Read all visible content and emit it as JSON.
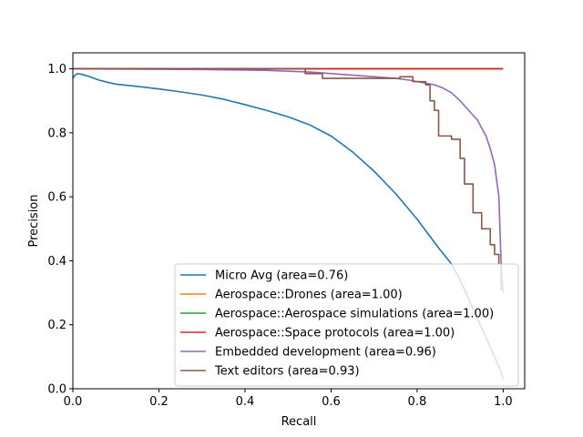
{
  "chart_data": {
    "type": "line",
    "xlabel": "Recall",
    "ylabel": "Precision",
    "xlim": [
      0.0,
      1.05
    ],
    "ylim": [
      0.0,
      1.05
    ],
    "grid": false,
    "legend_position": "lower-right",
    "x_ticks": [
      "0.0",
      "0.2",
      "0.4",
      "0.6",
      "0.8",
      "1.0"
    ],
    "y_ticks": [
      "0.0",
      "0.2",
      "0.4",
      "0.6",
      "0.8",
      "1.0"
    ],
    "series": [
      {
        "name": "Micro Avg (area=0.76)",
        "color": "#1f77b4",
        "x": [
          0.0,
          0.005,
          0.01,
          0.02,
          0.04,
          0.06,
          0.08,
          0.1,
          0.15,
          0.2,
          0.25,
          0.3,
          0.35,
          0.4,
          0.45,
          0.5,
          0.55,
          0.6,
          0.65,
          0.7,
          0.75,
          0.8,
          0.85,
          0.88,
          0.9,
          0.92,
          0.94,
          0.96,
          0.98,
          0.99,
          0.995,
          1.0
        ],
        "y": [
          0.97,
          0.98,
          0.985,
          0.983,
          0.975,
          0.965,
          0.958,
          0.952,
          0.945,
          0.937,
          0.928,
          0.918,
          0.905,
          0.888,
          0.87,
          0.85,
          0.825,
          0.79,
          0.74,
          0.68,
          0.61,
          0.53,
          0.44,
          0.39,
          0.34,
          0.28,
          0.22,
          0.16,
          0.1,
          0.07,
          0.05,
          0.03
        ]
      },
      {
        "name": "Aerospace::Drones (area=1.00)",
        "color": "#ff7f0e",
        "x": [
          0.0,
          1.0
        ],
        "y": [
          1.0,
          1.0
        ]
      },
      {
        "name": "Aerospace::Aerospace simulations (area=1.00)",
        "color": "#2ca02c",
        "x": [
          0.0,
          1.0
        ],
        "y": [
          1.0,
          1.0
        ]
      },
      {
        "name": "Aerospace::Space protocols (area=1.00)",
        "color": "#d62728",
        "x": [
          0.0,
          1.0
        ],
        "y": [
          1.0,
          1.0
        ]
      },
      {
        "name": "Embedded development (area=0.96)",
        "color": "#9467bd",
        "x": [
          0.0,
          0.3,
          0.45,
          0.55,
          0.6,
          0.65,
          0.7,
          0.75,
          0.78,
          0.8,
          0.82,
          0.84,
          0.86,
          0.88,
          0.9,
          0.92,
          0.94,
          0.96,
          0.97,
          0.98,
          0.99,
          0.995,
          1.0
        ],
        "y": [
          1.0,
          0.998,
          0.995,
          0.99,
          0.985,
          0.98,
          0.975,
          0.97,
          0.965,
          0.96,
          0.955,
          0.95,
          0.94,
          0.925,
          0.9,
          0.87,
          0.84,
          0.79,
          0.75,
          0.7,
          0.6,
          0.4,
          0.3
        ]
      },
      {
        "name": "Text editors (area=0.93)",
        "color": "#8c564b",
        "x": [
          0.0,
          0.54,
          0.54,
          0.58,
          0.58,
          0.76,
          0.76,
          0.79,
          0.79,
          0.82,
          0.82,
          0.83,
          0.83,
          0.84,
          0.84,
          0.85,
          0.85,
          0.88,
          0.88,
          0.9,
          0.9,
          0.91,
          0.91,
          0.93,
          0.93,
          0.95,
          0.95,
          0.97,
          0.97,
          0.98,
          0.98,
          0.99,
          0.99,
          0.995,
          0.995,
          1.0
        ],
        "y": [
          1.0,
          1.0,
          0.985,
          0.985,
          0.97,
          0.97,
          0.975,
          0.975,
          0.96,
          0.96,
          0.95,
          0.95,
          0.9,
          0.9,
          0.87,
          0.87,
          0.79,
          0.79,
          0.78,
          0.78,
          0.72,
          0.72,
          0.64,
          0.64,
          0.55,
          0.55,
          0.5,
          0.5,
          0.45,
          0.45,
          0.42,
          0.42,
          0.39,
          0.39,
          0.31,
          0.31
        ]
      }
    ]
  }
}
